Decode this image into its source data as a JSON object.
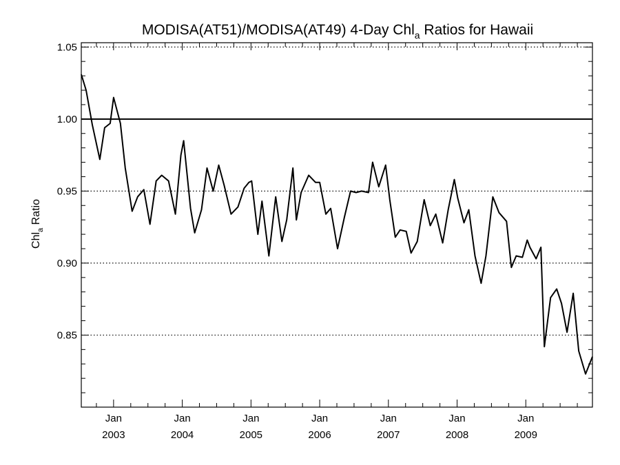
{
  "chart_data": {
    "type": "line",
    "title": {
      "prefix": "MODISA(AT51)/MODISA(AT49) 4-Day Chl",
      "subscript": "a",
      "suffix": " Ratios for Hawaii"
    },
    "ylabel": {
      "prefix": "Chl",
      "subscript": "a",
      "suffix": " Ratio"
    },
    "xlabel": "",
    "ylim": [
      0.8,
      1.053
    ],
    "y_ticks": [
      "0.85",
      "0.90",
      "0.95",
      "1.00",
      "1.05"
    ],
    "y_gridlines_dotted": [
      0.85,
      0.9,
      0.95,
      1.05
    ],
    "reference_line": 1.0,
    "x_tick_labels": [
      {
        "month": "Jan",
        "year": "2003",
        "date": 2003.0
      },
      {
        "month": "Jan",
        "year": "2004",
        "date": 2004.0
      },
      {
        "month": "Jan",
        "year": "2005",
        "date": 2005.0
      },
      {
        "month": "Jan",
        "year": "2006",
        "date": 2006.0
      },
      {
        "month": "Jan",
        "year": "2007",
        "date": 2007.0
      },
      {
        "month": "Jan",
        "year": "2008",
        "date": 2008.0
      },
      {
        "month": "Jan",
        "year": "2009",
        "date": 2009.0
      }
    ],
    "xlim": [
      2002.53,
      2009.97
    ],
    "series": [
      {
        "color": "#000000",
        "x": [
          2002.53,
          2002.6,
          2002.69,
          2002.8,
          2002.87,
          2002.95,
          2003.0,
          2003.1,
          2003.17,
          2003.27,
          2003.35,
          2003.44,
          2003.53,
          2003.62,
          2003.7,
          2003.8,
          2003.9,
          2003.98,
          2004.02,
          2004.12,
          2004.18,
          2004.28,
          2004.36,
          2004.45,
          2004.53,
          2004.61,
          2004.71,
          2004.81,
          2004.9,
          2004.97,
          2005.01,
          2005.1,
          2005.16,
          2005.26,
          2005.36,
          2005.45,
          2005.52,
          2005.61,
          2005.66,
          2005.73,
          2005.84,
          2005.94,
          2006.0,
          2006.09,
          2006.16,
          2006.26,
          2006.36,
          2006.45,
          2006.53,
          2006.61,
          2006.71,
          2006.77,
          2006.86,
          2006.96,
          2007.02,
          2007.1,
          2007.17,
          2007.26,
          2007.33,
          2007.42,
          2007.52,
          2007.61,
          2007.69,
          2007.79,
          2007.87,
          2007.96,
          2008.01,
          2008.1,
          2008.17,
          2008.26,
          2008.35,
          2008.42,
          2008.52,
          2008.61,
          2008.72,
          2008.79,
          2008.86,
          2008.95,
          2009.02,
          2009.06,
          2009.15,
          2009.22,
          2009.27,
          2009.36,
          2009.45,
          2009.52,
          2009.6,
          2009.69,
          2009.77,
          2009.87,
          2009.97
        ],
        "y": [
          1.031,
          1.02,
          0.996,
          0.972,
          0.994,
          0.997,
          1.015,
          0.997,
          0.966,
          0.936,
          0.946,
          0.951,
          0.927,
          0.957,
          0.961,
          0.957,
          0.934,
          0.975,
          0.985,
          0.938,
          0.921,
          0.937,
          0.966,
          0.95,
          0.968,
          0.954,
          0.934,
          0.939,
          0.952,
          0.956,
          0.957,
          0.92,
          0.943,
          0.905,
          0.946,
          0.915,
          0.93,
          0.966,
          0.93,
          0.949,
          0.961,
          0.956,
          0.956,
          0.934,
          0.938,
          0.91,
          0.932,
          0.95,
          0.949,
          0.95,
          0.949,
          0.97,
          0.953,
          0.968,
          0.944,
          0.918,
          0.923,
          0.922,
          0.907,
          0.915,
          0.944,
          0.926,
          0.934,
          0.914,
          0.937,
          0.958,
          0.945,
          0.928,
          0.937,
          0.905,
          0.886,
          0.905,
          0.946,
          0.935,
          0.929,
          0.897,
          0.905,
          0.904,
          0.916,
          0.911,
          0.903,
          0.911,
          0.842,
          0.876,
          0.882,
          0.872,
          0.852,
          0.879,
          0.839,
          0.823,
          0.835
        ]
      }
    ]
  }
}
